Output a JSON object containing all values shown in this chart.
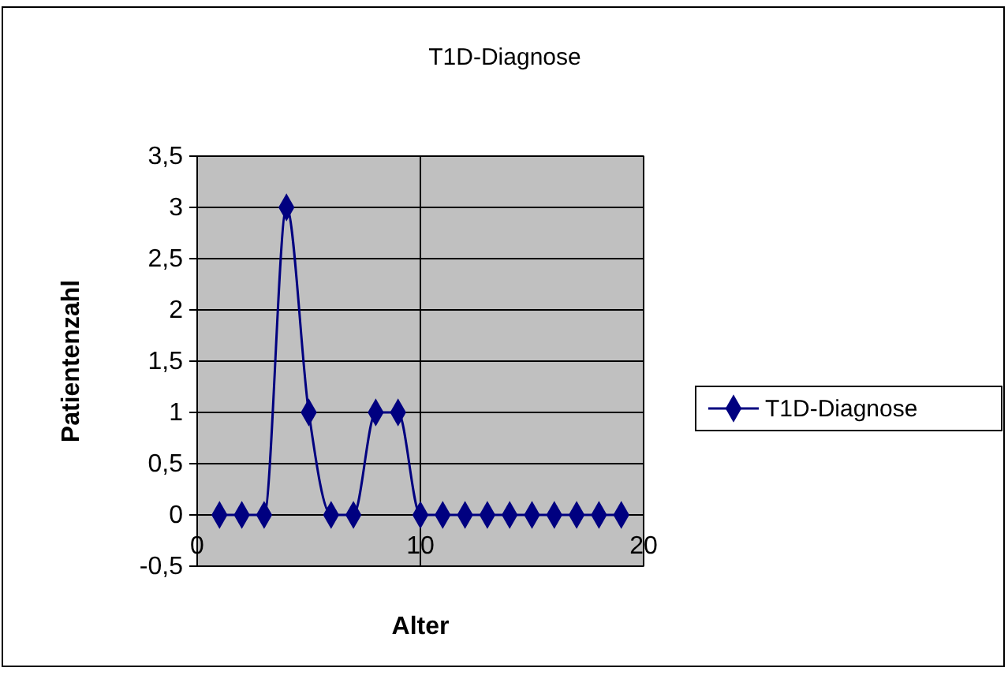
{
  "chart_data": {
    "type": "line",
    "title": "T1D-Diagnose",
    "xlabel": "Alter",
    "ylabel": "Patientenzahl",
    "x": [
      1,
      2,
      3,
      4,
      5,
      6,
      7,
      8,
      9,
      10,
      11,
      12,
      13,
      14,
      15,
      16,
      17,
      18,
      19
    ],
    "series": [
      {
        "name": "T1D-Diagnose",
        "color": "#000080",
        "values": [
          0,
          0,
          0,
          3,
          1,
          0,
          0,
          1,
          1,
          0,
          0,
          0,
          0,
          0,
          0,
          0,
          0,
          0,
          0
        ]
      }
    ],
    "xlim": [
      0,
      20
    ],
    "xticks": [
      0,
      10,
      20
    ],
    "ylim": [
      -0.5,
      3.5
    ],
    "yticks": [
      {
        "value": -0.5,
        "label": "-0,5"
      },
      0,
      {
        "value": 0.5,
        "label": "0,5"
      },
      1,
      {
        "value": 1.5,
        "label": "1,5"
      },
      2,
      {
        "value": 2.5,
        "label": "2,5"
      },
      3,
      {
        "value": 3.5,
        "label": "3,5"
      }
    ],
    "grid": true,
    "legend": "right",
    "marker": "diamond",
    "line_style": "solid"
  }
}
